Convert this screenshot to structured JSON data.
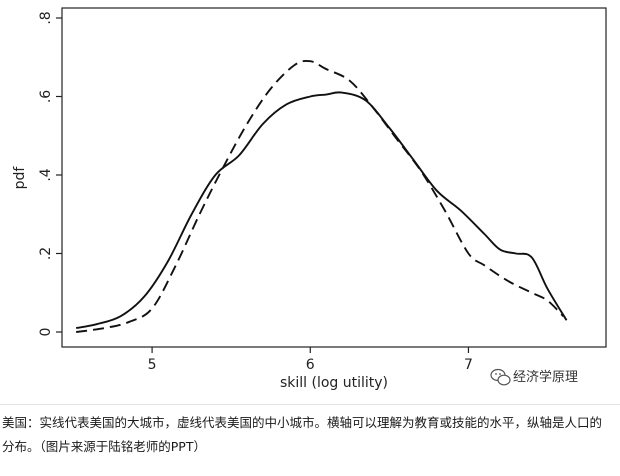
{
  "chart_data": {
    "type": "line",
    "title": "",
    "xlabel": "skill (log utility)",
    "ylabel": "pdf",
    "xlim": [
      4.5,
      7.8
    ],
    "ylim": [
      0,
      0.8
    ],
    "x_ticks": [
      5,
      6,
      7
    ],
    "x_tick_labels": [
      "5",
      "6",
      "7"
    ],
    "y_ticks": [
      0,
      0.2,
      0.4,
      0.6,
      0.8
    ],
    "y_tick_labels": [
      "0",
      ".2",
      ".4",
      ".6",
      ".8"
    ],
    "grid": false,
    "legend": "none",
    "series": [
      {
        "style": "solid",
        "color": "#111111",
        "x": [
          4.52,
          4.65,
          4.8,
          4.95,
          5.1,
          5.25,
          5.4,
          5.55,
          5.7,
          5.85,
          6.0,
          6.1,
          6.2,
          6.35,
          6.5,
          6.65,
          6.8,
          6.95,
          7.1,
          7.2,
          7.3,
          7.4,
          7.5,
          7.62
        ],
        "y": [
          0.01,
          0.02,
          0.04,
          0.09,
          0.18,
          0.3,
          0.4,
          0.45,
          0.53,
          0.58,
          0.6,
          0.605,
          0.61,
          0.59,
          0.52,
          0.44,
          0.36,
          0.31,
          0.25,
          0.21,
          0.2,
          0.19,
          0.11,
          0.03
        ]
      },
      {
        "style": "dashed",
        "color": "#111111",
        "x": [
          4.52,
          4.7,
          4.85,
          5.0,
          5.15,
          5.3,
          5.45,
          5.6,
          5.75,
          5.9,
          6.0,
          6.1,
          6.25,
          6.4,
          6.55,
          6.7,
          6.85,
          7.0,
          7.1,
          7.25,
          7.4,
          7.5,
          7.6
        ],
        "y": [
          0.0,
          0.01,
          0.025,
          0.06,
          0.17,
          0.3,
          0.42,
          0.53,
          0.62,
          0.68,
          0.69,
          0.67,
          0.64,
          0.57,
          0.49,
          0.41,
          0.31,
          0.2,
          0.17,
          0.13,
          0.1,
          0.08,
          0.04
        ]
      }
    ]
  },
  "watermark": {
    "icon": "wechat-icon",
    "text": "经济学原理"
  },
  "caption": "美国：实线代表美国的大城市，虚线代表美国的中小城市。横轴可以理解为教育或技能的水平，纵轴是人口的分布。（图片来源于陆铭老师的PPT）"
}
